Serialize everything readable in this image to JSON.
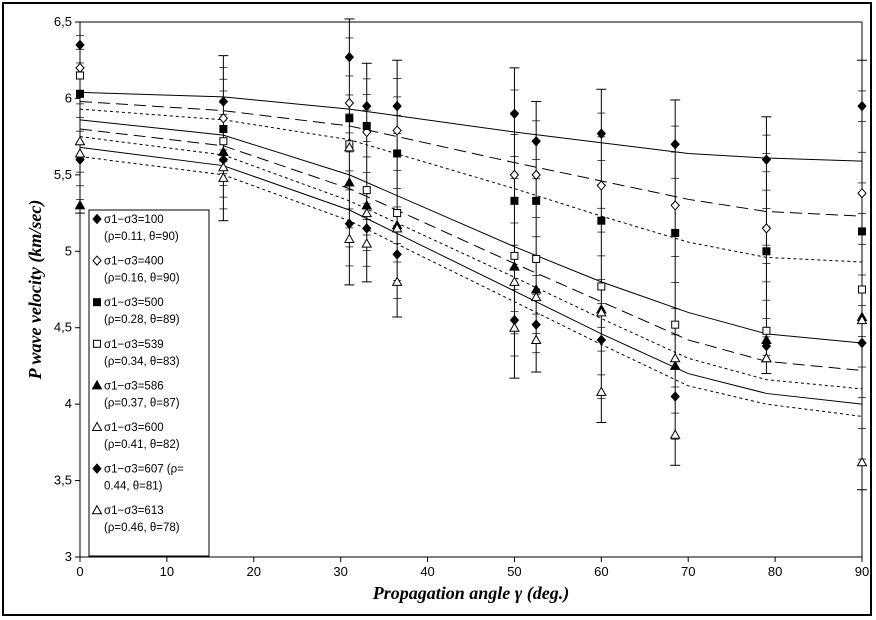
{
  "chart_data": {
    "type": "scatter",
    "xlabel": "Propagation angle γ (deg.)",
    "ylabel": "P wave velocity (km/sec)",
    "xlim": [
      0,
      90
    ],
    "ylim": [
      3,
      6.5
    ],
    "x_ticks": [
      "0",
      "10",
      "20",
      "30",
      "40",
      "50",
      "60",
      "70",
      "80",
      "90"
    ],
    "y_ticks": [
      "3",
      "3,5",
      "4",
      "4,5",
      "5",
      "5,5",
      "6",
      "6,5"
    ],
    "grid": "none",
    "legend_placement": "left",
    "legend_border": "#000000",
    "series": [
      {
        "name": "σ1−σ3=100",
        "name_line2": "(ρ=0.11, θ=90)",
        "marker": "diamond-filled",
        "line_style": "solid",
        "x": [
          0,
          16.5,
          31,
          33,
          36.5,
          50,
          52.5,
          60,
          68.5,
          79,
          90
        ],
        "y": [
          6.35,
          5.98,
          6.27,
          5.95,
          5.95,
          5.9,
          5.72,
          5.77,
          5.7,
          5.6,
          5.95
        ],
        "fit": [
          [
            0,
            6.04
          ],
          [
            16.5,
            6.01
          ],
          [
            31,
            5.93
          ],
          [
            50,
            5.78
          ],
          [
            60,
            5.71
          ],
          [
            70,
            5.64
          ],
          [
            79,
            5.61
          ],
          [
            90,
            5.59
          ]
        ]
      },
      {
        "name": "σ1−σ3=400",
        "name_line2": "(ρ=0.16, θ=90)",
        "marker": "diamond-open",
        "line_style": "dash",
        "x": [
          0,
          16.5,
          31,
          33,
          36.5,
          50,
          52.5,
          60,
          68.5,
          79,
          90
        ],
        "y": [
          6.2,
          5.87,
          5.97,
          5.78,
          5.79,
          5.5,
          5.5,
          5.43,
          5.3,
          5.15,
          5.38
        ],
        "fit": [
          [
            0,
            5.98
          ],
          [
            16.5,
            5.92
          ],
          [
            31,
            5.82
          ],
          [
            50,
            5.58
          ],
          [
            60,
            5.46
          ],
          [
            70,
            5.34
          ],
          [
            79,
            5.26
          ],
          [
            90,
            5.23
          ]
        ]
      },
      {
        "name": "σ1−σ3=500",
        "name_line2": "(ρ=0.28, θ=89)",
        "marker": "square-filled",
        "line_style": "dot",
        "x": [
          0,
          16.5,
          31,
          33,
          36.5,
          50,
          52.5,
          60,
          68.5,
          79,
          90
        ],
        "y": [
          6.03,
          5.8,
          5.87,
          5.82,
          5.64,
          5.33,
          5.33,
          5.2,
          5.12,
          5.0,
          5.13
        ],
        "fit": [
          [
            0,
            5.93
          ],
          [
            16.5,
            5.86
          ],
          [
            31,
            5.73
          ],
          [
            50,
            5.41
          ],
          [
            60,
            5.23
          ],
          [
            70,
            5.06
          ],
          [
            79,
            4.96
          ],
          [
            90,
            4.93
          ]
        ]
      },
      {
        "name": "σ1−σ3=539",
        "name_line2": "(ρ=0.34, θ=83)",
        "marker": "square-open",
        "line_style": "solid",
        "x": [
          0,
          16.5,
          31,
          33,
          36.5,
          50,
          52.5,
          60,
          68.5,
          79,
          90
        ],
        "y": [
          6.15,
          5.72,
          5.7,
          5.4,
          5.25,
          4.97,
          4.95,
          4.77,
          4.52,
          4.48,
          4.75
        ],
        "fit": [
          [
            0,
            5.86
          ],
          [
            16.5,
            5.76
          ],
          [
            31,
            5.5
          ],
          [
            50,
            5.03
          ],
          [
            60,
            4.8
          ],
          [
            70,
            4.6
          ],
          [
            79,
            4.46
          ],
          [
            90,
            4.4
          ]
        ]
      },
      {
        "name": "σ1−σ3=586",
        "name_line2": "(ρ=0.37, θ=87)",
        "marker": "triangle-filled",
        "line_style": "dash",
        "x": [
          0,
          16.5,
          31,
          33,
          36.5,
          50,
          52.5,
          60,
          68.5,
          79,
          90
        ],
        "y": [
          5.3,
          5.65,
          5.45,
          5.3,
          5.17,
          4.9,
          4.75,
          4.62,
          4.25,
          4.42,
          4.57
        ],
        "fit": [
          [
            0,
            5.8
          ],
          [
            16.5,
            5.69
          ],
          [
            31,
            5.41
          ],
          [
            50,
            4.92
          ],
          [
            60,
            4.67
          ],
          [
            70,
            4.42
          ],
          [
            79,
            4.28
          ],
          [
            90,
            4.22
          ]
        ]
      },
      {
        "name": "σ1−σ3=600",
        "name_line2": "(ρ=0.41, θ=82)",
        "marker": "triangle-open",
        "line_style": "dot",
        "x": [
          0,
          16.5,
          31,
          33,
          36.5,
          50,
          52.5,
          60,
          68.5,
          79,
          90
        ],
        "y": [
          5.72,
          5.55,
          5.68,
          5.25,
          5.15,
          4.8,
          4.7,
          4.6,
          4.3,
          4.3,
          4.55
        ],
        "fit": [
          [
            0,
            5.75
          ],
          [
            16.5,
            5.63
          ],
          [
            31,
            5.33
          ],
          [
            50,
            4.83
          ],
          [
            60,
            4.56
          ],
          [
            70,
            4.3
          ],
          [
            79,
            4.16
          ],
          [
            90,
            4.1
          ]
        ]
      },
      {
        "name": "σ1−σ3=607 (ρ=",
        "name_line2": "0.44, θ=81)",
        "marker": "diamond-filled",
        "line_style": "solid",
        "x": [
          0,
          16.5,
          31,
          33,
          36.5,
          50,
          52.5,
          60,
          68.5,
          79,
          90
        ],
        "y": [
          5.6,
          5.6,
          5.18,
          5.15,
          4.98,
          4.55,
          4.52,
          4.42,
          4.05,
          4.38,
          4.4
        ],
        "fit": [
          [
            0,
            5.68
          ],
          [
            16.5,
            5.56
          ],
          [
            31,
            5.27
          ],
          [
            50,
            4.74
          ],
          [
            60,
            4.46
          ],
          [
            70,
            4.2
          ],
          [
            79,
            4.07
          ],
          [
            90,
            4.0
          ]
        ]
      },
      {
        "name": "σ1−σ3=613",
        "name_line2": "(ρ=0.46, θ=78)",
        "marker": "triangle-open",
        "line_style": "dot",
        "x": [
          0,
          16.5,
          31,
          33,
          36.5,
          50,
          52.5,
          60,
          68.5,
          79,
          90
        ],
        "y": [
          5.64,
          5.48,
          5.08,
          5.05,
          4.8,
          4.5,
          4.42,
          4.08,
          3.8,
          4.3,
          3.62
        ],
        "fit": [
          [
            0,
            5.62
          ],
          [
            16.5,
            5.5
          ],
          [
            31,
            5.2
          ],
          [
            50,
            4.67
          ],
          [
            60,
            4.39
          ],
          [
            70,
            4.12
          ],
          [
            79,
            4.0
          ],
          [
            90,
            3.92
          ]
        ]
      }
    ],
    "error_bars": {
      "x": [
        0,
        16.5,
        31,
        33,
        36.5,
        50,
        52.5,
        60,
        68.5,
        79,
        90
      ],
      "low": [
        5.25,
        5.2,
        4.78,
        4.8,
        4.57,
        4.17,
        4.21,
        3.88,
        3.6,
        4.2,
        3.44
      ],
      "high": [
        6.5,
        6.28,
        6.52,
        6.23,
        6.25,
        6.2,
        5.98,
        6.06,
        5.99,
        5.88,
        6.25
      ]
    }
  }
}
